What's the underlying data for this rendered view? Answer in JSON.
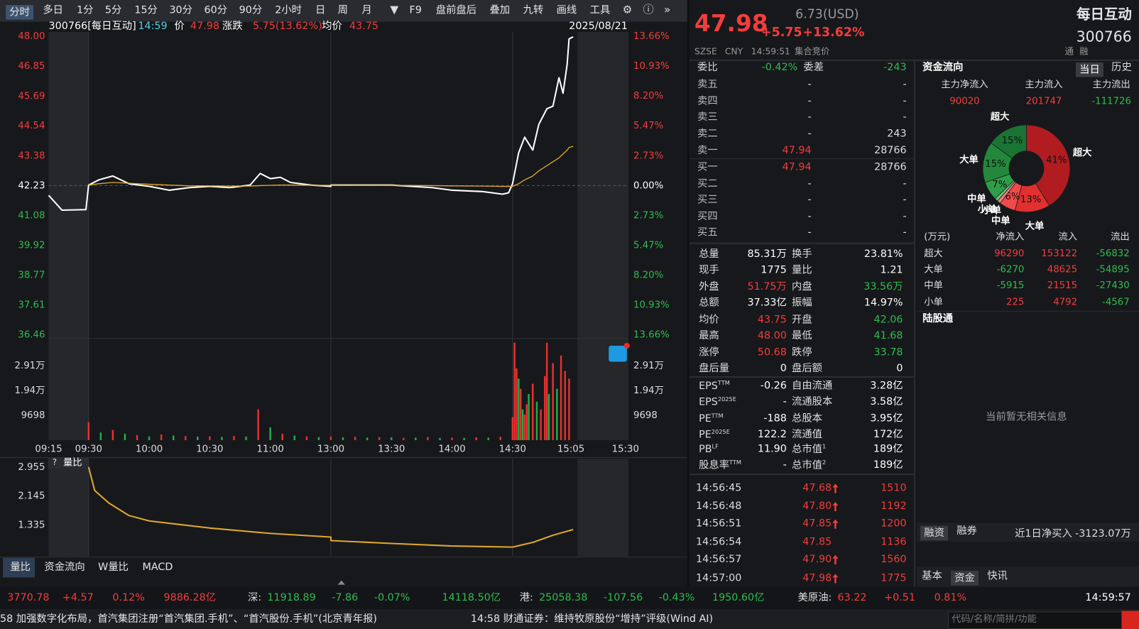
{
  "toolbar": {
    "tabs": [
      "分时",
      "多日",
      "1分",
      "5分",
      "15分",
      "30分",
      "60分",
      "90分",
      "2小时",
      "日",
      "周",
      "月",
      "F9",
      "盘前盘后",
      "叠加",
      "九转",
      "画线",
      "工具"
    ]
  },
  "chart_header": {
    "code": "300766[每日互动]",
    "time": "14:59",
    "price_label": "价",
    "price": "47.98",
    "change_label": "涨跌",
    "change": "5.75(13.62%)",
    "avg_label": "均价",
    "avg": "43.75",
    "date": "2025/08/21"
  },
  "chart_data": [
    {
      "type": "line",
      "x": [
        "09:15",
        "09:20",
        "09:29",
        "09:30",
        "09:35",
        "09:42",
        "09:50",
        "10:00",
        "10:10",
        "10:20",
        "10:30",
        "10:40",
        "10:50",
        "10:55",
        "11:00",
        "11:05",
        "11:10",
        "11:20",
        "11:30",
        "13:00",
        "13:30",
        "13:50",
        "14:00",
        "14:15",
        "14:25",
        "14:28",
        "14:30",
        "14:33",
        "14:36",
        "14:40",
        "14:43",
        "14:47",
        "14:50",
        "14:53",
        "14:55",
        "14:57",
        "14:58",
        "15:00"
      ],
      "series": [
        {
          "color": "#ffffff",
          "values": [
            41.85,
            41.28,
            41.3,
            42.25,
            42.45,
            42.6,
            42.3,
            42.2,
            42.05,
            42.15,
            42.2,
            42.15,
            42.25,
            42.7,
            42.5,
            42.55,
            42.35,
            42.25,
            42.2,
            42.25,
            42.25,
            42.15,
            42.05,
            42.0,
            41.9,
            41.95,
            42.3,
            43.5,
            44.1,
            43.6,
            44.6,
            45.2,
            45.3,
            46.4,
            45.8,
            46.9,
            47.9,
            47.98
          ]
        },
        {
          "color": "#e0a82e",
          "values": [
            null,
            null,
            null,
            42.25,
            42.3,
            42.35,
            42.32,
            42.28,
            42.25,
            42.22,
            42.22,
            42.21,
            42.21,
            42.23,
            42.24,
            42.25,
            42.25,
            42.24,
            42.24,
            42.24,
            42.24,
            42.23,
            42.22,
            42.21,
            42.2,
            42.2,
            42.2,
            42.3,
            42.45,
            42.6,
            42.8,
            43.0,
            43.15,
            43.3,
            43.45,
            43.6,
            43.7,
            43.75
          ]
        }
      ],
      "xticks": [
        "09:15",
        "09:30",
        "10:00",
        "10:30",
        "11:00",
        "13:00",
        "13:30",
        "14:00",
        "14:30",
        "15:05",
        "15:30"
      ],
      "ylim": [
        36.46,
        48.0
      ],
      "yticks": [
        {
          "value": 48.0,
          "label": "48.00"
        },
        46.85,
        45.69,
        44.54,
        43.38,
        42.23,
        41.08,
        39.92,
        38.77,
        37.61,
        36.46
      ],
      "y2lim": [
        -13.66,
        13.66
      ],
      "y2ticks": [
        {
          "value": 13.66,
          "label": "13.66%"
        },
        {
          "value": 10.93,
          "label": "10.93%"
        },
        {
          "value": 8.2,
          "label": "8.20%"
        },
        {
          "value": 5.47,
          "label": "5.47%"
        },
        {
          "value": 2.73,
          "label": "2.73%"
        },
        {
          "value": 0,
          "label": "0.00%"
        },
        {
          "value": -2.73,
          "label": "2.73%"
        },
        {
          "value": -5.47,
          "label": "5.47%"
        },
        {
          "value": -8.2,
          "label": "8.20%"
        },
        {
          "value": -10.93,
          "label": "10.93%"
        },
        {
          "value": -13.66,
          "label": "13.66%"
        }
      ]
    },
    {
      "type": "bar",
      "x": [
        "09:30",
        "09:36",
        "09:42",
        "09:48",
        "09:54",
        "10:00",
        "10:06",
        "10:12",
        "10:18",
        "10:24",
        "10:30",
        "10:36",
        "10:42",
        "10:48",
        "10:54",
        "11:00",
        "11:06",
        "11:12",
        "11:18",
        "11:24",
        "13:00",
        "13:06",
        "13:12",
        "13:18",
        "13:24",
        "13:30",
        "13:36",
        "13:42",
        "13:48",
        "13:54",
        "14:00",
        "14:06",
        "14:12",
        "14:18",
        "14:24",
        "14:30",
        "14:31",
        "14:32",
        "14:33",
        "14:34",
        "14:35",
        "14:36",
        "14:37",
        "14:38",
        "14:40",
        "14:42",
        "14:44",
        "14:46",
        "14:47",
        "14:48",
        "14:50",
        "14:52",
        "14:54",
        "14:56",
        "14:58"
      ],
      "values": [
        7000,
        3000,
        4000,
        2500,
        2000,
        1500,
        2200,
        1800,
        1600,
        1400,
        1500,
        1300,
        1600,
        1400,
        12000,
        5000,
        2500,
        1800,
        1500,
        1200,
        1400,
        1100,
        1300,
        1000,
        1200,
        1100,
        900,
        1000,
        1200,
        900,
        1000,
        900,
        1100,
        1000,
        1300,
        9000,
        38000,
        28000,
        24000,
        20000,
        12000,
        10000,
        14000,
        18000,
        22000,
        15000,
        12000,
        25000,
        38000,
        18000,
        30000,
        20000,
        33000,
        27000,
        24000
      ],
      "colors": [
        "#e8312f",
        "#1fae4a",
        "#e8312f",
        "#1fae4a",
        "#e8312f",
        "#1fae4a",
        "#e8312f",
        "#1fae4a",
        "#e8312f",
        "#1fae4a",
        "#e8312f",
        "#1fae4a",
        "#e8312f",
        "#1fae4a",
        "#e8312f",
        "#1fae4a",
        "#e8312f",
        "#1fae4a",
        "#e8312f",
        "#1fae4a",
        "#e8312f",
        "#1fae4a",
        "#e8312f",
        "#1fae4a",
        "#e8312f",
        "#1fae4a",
        "#e8312f",
        "#1fae4a",
        "#e8312f",
        "#1fae4a",
        "#e8312f",
        "#1fae4a",
        "#e8312f",
        "#1fae4a",
        "#e8312f",
        "#e8312f",
        "#e8312f",
        "#e8312f",
        "#1fae4a",
        "#e8312f",
        "#1fae4a",
        "#e8312f",
        "#e8312f",
        "#1fae4a",
        "#e8312f",
        "#1fae4a",
        "#e8312f",
        "#e8312f",
        "#e8312f",
        "#1fae4a",
        "#e8312f",
        "#1fae4a",
        "#e8312f",
        "#e8312f",
        "#e8312f"
      ],
      "ylim": [
        0,
        38792
      ],
      "yticks": [
        {
          "value": 29094,
          "label": "2.91万"
        },
        {
          "value": 19396,
          "label": "1.94万"
        },
        9698
      ]
    },
    {
      "type": "line",
      "title": "量比",
      "x": [
        "09:30",
        "09:33",
        "09:40",
        "09:50",
        "10:00",
        "10:30",
        "11:00",
        "11:30",
        "13:00",
        "13:30",
        "14:00",
        "14:30",
        "14:40",
        "14:50",
        "15:00"
      ],
      "series": [
        {
          "color": "#e0a82e",
          "values": [
            2.955,
            2.3,
            1.95,
            1.6,
            1.45,
            1.25,
            1.1,
            1.0,
            0.9,
            0.82,
            0.75,
            0.72,
            0.85,
            1.05,
            1.21
          ]
        }
      ],
      "ylim": [
        0.48,
        2.955
      ],
      "yticks": [
        2.955,
        2.145,
        1.335
      ]
    }
  ],
  "indicator_tabs": [
    "量比",
    "资金流向",
    "W量比",
    "MACD"
  ],
  "quote": {
    "price": "47.98",
    "change": "+5.75",
    "change_pct": "+13.62%",
    "usd": "6.73(USD)",
    "name": "每日互动",
    "code": "300766",
    "market": "SZSE",
    "currency": "CNY",
    "time": "14:59:51",
    "status": "集合竞价",
    "tags": [
      "通",
      "融"
    ]
  },
  "order_book": {
    "ratio_label": "委比",
    "ratio": "-0.42%",
    "diff_label": "委差",
    "diff": "-243",
    "rows": [
      [
        "卖五",
        "-",
        "-"
      ],
      [
        "卖四",
        "-",
        "-"
      ],
      [
        "卖三",
        "-",
        "-"
      ],
      [
        "卖二",
        "-",
        "243"
      ],
      [
        "卖一",
        "47.94",
        "28766"
      ],
      [
        "买一",
        "47.94",
        "28766"
      ],
      [
        "买二",
        "-",
        "-"
      ],
      [
        "买三",
        "-",
        "-"
      ],
      [
        "买四",
        "-",
        "-"
      ],
      [
        "买五",
        "-",
        "-"
      ]
    ]
  },
  "stats": [
    {
      "label": "总量",
      "value": "85.31万",
      "color": "#ffffff"
    },
    {
      "label": "换手",
      "value": "23.81%",
      "color": "#ffffff"
    },
    {
      "label": "现手",
      "value": "1775",
      "color": "#ffffff"
    },
    {
      "label": "量比",
      "value": "1.21",
      "color": "#ffffff"
    },
    {
      "label": "外盘",
      "value": "51.75万",
      "color": "#f23d3d"
    },
    {
      "label": "内盘",
      "value": "33.56万",
      "color": "#2ebd4f"
    },
    {
      "label": "总额",
      "value": "37.33亿",
      "color": "#ffffff"
    },
    {
      "label": "振幅",
      "value": "14.97%",
      "color": "#ffffff"
    },
    {
      "label": "均价",
      "value": "43.75",
      "color": "#f23d3d"
    },
    {
      "label": "开盘",
      "value": "42.06",
      "color": "#2ebd4f"
    },
    {
      "label": "最高",
      "value": "48.00",
      "color": "#f23d3d"
    },
    {
      "label": "最低",
      "value": "41.68",
      "color": "#2ebd4f"
    },
    {
      "label": "涨停",
      "value": "50.68",
      "color": "#f23d3d"
    },
    {
      "label": "跌停",
      "value": "33.78",
      "color": "#2ebd4f"
    },
    {
      "label": "盘后量",
      "value": "0",
      "color": "#ffffff"
    },
    {
      "label": "盘后额",
      "value": "0",
      "color": "#ffffff"
    }
  ],
  "fundamentals": [
    {
      "label": "EPS",
      "sup": "TTM",
      "value": "-0.26"
    },
    {
      "label": "自由流通",
      "value": "3.28亿"
    },
    {
      "label": "EPS",
      "sup": "2025E",
      "value": "-"
    },
    {
      "label": "流通股本",
      "value": "3.58亿"
    },
    {
      "label": "PE",
      "sup": "TTM",
      "value": "-188"
    },
    {
      "label": "总股本",
      "value": "3.95亿"
    },
    {
      "label": "PE",
      "sup": "2025E",
      "value": "122.2"
    },
    {
      "label": "流通值",
      "value": "172亿"
    },
    {
      "label": "PB",
      "sup": "LF",
      "value": "11.90"
    },
    {
      "label": "总市值",
      "sup": "1",
      "value": "189亿"
    },
    {
      "label": "股息率",
      "sup": "TTM",
      "value": "-"
    },
    {
      "label": "总市值",
      "sup": "2",
      "value": "189亿"
    }
  ],
  "trades": [
    {
      "time": "14:56:45",
      "price": "47.68",
      "volume": "1510",
      "up": true
    },
    {
      "time": "14:56:48",
      "price": "47.80",
      "volume": "1192",
      "up": true
    },
    {
      "time": "14:56:51",
      "price": "47.85",
      "volume": "1200",
      "up": true
    },
    {
      "time": "14:56:54",
      "price": "47.85",
      "volume": "1136",
      "up": false
    },
    {
      "time": "14:56:57",
      "price": "47.90",
      "volume": "1560",
      "up": true
    },
    {
      "time": "14:57:00",
      "price": "47.98",
      "volume": "1775",
      "up": true
    }
  ],
  "fund_flow": {
    "title": "资金流向",
    "tabs": [
      "当日",
      "历史"
    ],
    "main": [
      {
        "label": "主力净流入",
        "value": "90020"
      },
      {
        "label": "主力流入",
        "value": "201747"
      },
      {
        "label": "主力流出",
        "value": "-111726"
      }
    ],
    "pie": {
      "type": "pie",
      "categories": [
        "超大",
        "大单",
        "中单",
        "小单",
        "小单",
        "中单",
        "大单",
        "超大"
      ],
      "values": [
        41,
        13,
        6,
        1.3,
        1.2,
        7,
        15,
        15
      ],
      "value_labels": [
        "41%",
        "13%",
        "6%",
        null,
        null,
        "7%",
        "15%",
        "15%"
      ],
      "colors": [
        "#b01c20",
        "#e0302f",
        "#f04a48",
        "#f27b78",
        "#6fc27f",
        "#2f9e48",
        "#23883c",
        "#1a7433"
      ]
    },
    "unit": "(万元)",
    "headers": [
      "净流入",
      "流入",
      "流出"
    ],
    "rows": [
      [
        "超大",
        "96290",
        "153122",
        "-56832"
      ],
      [
        "大单",
        "-6270",
        "48625",
        "-54895"
      ],
      [
        "中单",
        "-5915",
        "21515",
        "-27430"
      ],
      [
        "小单",
        "225",
        "4792",
        "-4567"
      ]
    ],
    "hk_title": "陆股通",
    "empty": "当前暂无相关信息",
    "margin_tabs": [
      "融资",
      "融券"
    ],
    "net_buy_label": "近1日净买入",
    "net_buy": "-3123.07万",
    "bottom_tabs": [
      "基本",
      "资金",
      "快讯"
    ]
  },
  "ticker": {
    "items": [
      {
        "text": "3770.78",
        "color": "#f23d3d"
      },
      {
        "text": "+4.57",
        "color": "#f23d3d"
      },
      {
        "text": "0.12%",
        "color": "#f23d3d"
      },
      {
        "text": "9886.28亿",
        "color": "#f23d3d"
      },
      {
        "text": "深:",
        "color": "#dddddd"
      },
      {
        "text": "11918.89",
        "color": "#2ebd4f"
      },
      {
        "text": "-7.86",
        "color": "#2ebd4f"
      },
      {
        "text": "-0.07%",
        "color": "#2ebd4f"
      },
      {
        "text": "14118.50亿",
        "color": "#2ebd4f"
      },
      {
        "text": "港:",
        "color": "#dddddd"
      },
      {
        "text": "25058.38",
        "color": "#2ebd4f"
      },
      {
        "text": "-107.56",
        "color": "#2ebd4f"
      },
      {
        "text": "-0.43%",
        "color": "#2ebd4f"
      },
      {
        "text": "1950.60亿",
        "color": "#2ebd4f"
      },
      {
        "text": "美原油:",
        "color": "#dddddd"
      },
      {
        "text": "63.22",
        "color": "#f23d3d"
      },
      {
        "text": "+0.51",
        "color": "#f23d3d"
      },
      {
        "text": "0.81%",
        "color": "#f23d3d"
      }
    ],
    "clock": "14:59:57"
  },
  "news": {
    "items": [
      "58 加强数字化布局，首汽集团注册“首汽集团.手机”、“首汽股份.手机”(北京青年报)",
      "14:58 财通证券：维持牧原股份“增持”评级(Wind AI)"
    ],
    "search_placeholder": "代码/名称/简拼/功能"
  }
}
